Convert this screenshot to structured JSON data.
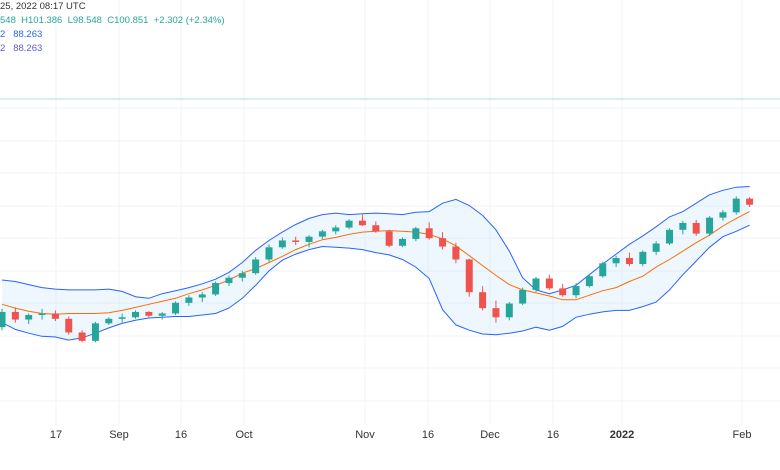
{
  "legend": {
    "header": "25, 2022 08:17 UTC",
    "ohlc_open": "548",
    "ohlc_high": "H101.386",
    "ohlc_low": "L98.548",
    "ohlc_close": "C100.851",
    "ohlc_change": "+2.302 (+2.34%)",
    "row2_prefix": "2",
    "row2_value": "88.263",
    "row3_prefix": "2",
    "row3_value": "88.263"
  },
  "chart_data": {
    "type": "candlestick",
    "indicator": "Bollinger Bands",
    "x_ticks": [
      "17",
      "Sep",
      "16",
      "Oct",
      "Nov",
      "16",
      "Dec",
      "16",
      "2022",
      "Feb"
    ],
    "y_range": [
      70,
      108
    ],
    "series": [
      {
        "name": "upper band",
        "values": [
          84.2,
          84.0,
          83.6,
          83.2,
          83.0,
          82.9,
          82.9,
          82.9,
          83.0,
          82.7,
          82.0,
          81.8,
          82.4,
          82.8,
          83.2,
          83.7,
          84.3,
          85.2,
          86.5,
          88.1,
          89.4,
          90.5,
          91.5,
          92.3,
          92.8,
          93.0,
          92.8,
          92.9,
          93.0,
          92.9,
          92.8,
          93.1,
          93.2,
          94.3,
          94.8,
          94.0,
          92.7,
          90.8,
          88.0,
          84.5,
          82.9,
          82.4,
          82.9,
          83.5,
          84.9,
          86.3,
          87.6,
          88.9,
          90.0,
          91.2,
          92.5,
          93.2,
          94.3,
          95.4,
          96.0,
          96.4,
          96.5
        ]
      },
      {
        "name": "basis",
        "values": [
          81.0,
          80.5,
          80.1,
          79.8,
          79.7,
          79.8,
          79.8,
          79.8,
          79.9,
          80.2,
          80.6,
          81.0,
          81.4,
          81.8,
          82.4,
          82.9,
          83.5,
          84.2,
          85.1,
          85.7,
          86.5,
          87.3,
          88.2,
          88.9,
          89.5,
          89.8,
          90.2,
          90.5,
          90.6,
          90.7,
          90.6,
          90.5,
          90.2,
          89.6,
          88.7,
          87.4,
          86.1,
          84.8,
          83.6,
          82.9,
          82.5,
          82.1,
          81.6,
          81.6,
          82.2,
          82.8,
          83.2,
          84.0,
          84.7,
          85.9,
          86.9,
          88.0,
          89.1,
          90.1,
          91.3,
          92.3,
          93.2
        ]
      },
      {
        "name": "lower band",
        "values": [
          78.6,
          77.7,
          77.2,
          76.8,
          76.7,
          76.3,
          76.6,
          77.2,
          77.9,
          78.5,
          78.9,
          79.2,
          79.3,
          79.4,
          79.4,
          79.6,
          79.8,
          80.5,
          81.8,
          83.5,
          85.4,
          86.8,
          87.6,
          88.2,
          88.6,
          88.5,
          88.4,
          88.2,
          87.8,
          87.5,
          86.9,
          85.9,
          84.4,
          80.3,
          78.3,
          77.6,
          77.1,
          77.0,
          77.2,
          77.5,
          78.0,
          77.6,
          78.1,
          79.3,
          79.7,
          80.0,
          80.2,
          80.2,
          80.7,
          81.3,
          82.9,
          84.9,
          86.7,
          88.5,
          89.9,
          90.6,
          91.4
        ]
      }
    ],
    "candles": [
      [
        78.0,
        80.4,
        77.6,
        80.0
      ],
      [
        80.0,
        80.6,
        78.6,
        79.0
      ],
      [
        79.0,
        79.8,
        78.4,
        79.6
      ],
      [
        79.6,
        80.4,
        79.0,
        79.8
      ],
      [
        79.8,
        80.2,
        78.8,
        79.1
      ],
      [
        79.1,
        79.4,
        77.0,
        77.3
      ],
      [
        77.3,
        77.6,
        76.0,
        76.2
      ],
      [
        76.2,
        78.7,
        76.0,
        78.5
      ],
      [
        78.5,
        79.3,
        78.3,
        79.1
      ],
      [
        79.1,
        79.8,
        78.6,
        79.3
      ],
      [
        79.3,
        80.2,
        79.1,
        80.0
      ],
      [
        80.0,
        80.1,
        79.3,
        79.5
      ],
      [
        79.5,
        80.0,
        79.0,
        79.8
      ],
      [
        79.8,
        81.4,
        79.6,
        81.2
      ],
      [
        81.2,
        82.2,
        80.8,
        81.9
      ],
      [
        81.9,
        82.6,
        81.3,
        82.3
      ],
      [
        82.3,
        84.0,
        82.1,
        83.8
      ],
      [
        83.8,
        84.8,
        83.4,
        84.5
      ],
      [
        84.5,
        85.4,
        84.0,
        85.1
      ],
      [
        85.1,
        87.2,
        84.9,
        86.9
      ],
      [
        86.9,
        88.9,
        86.6,
        88.5
      ],
      [
        88.5,
        89.8,
        88.3,
        89.4
      ],
      [
        89.4,
        89.9,
        88.8,
        89.2
      ],
      [
        89.2,
        90.1,
        88.5,
        89.9
      ],
      [
        89.9,
        90.8,
        89.6,
        90.6
      ],
      [
        90.6,
        91.4,
        90.2,
        91.1
      ],
      [
        91.1,
        92.2,
        90.9,
        92.0
      ],
      [
        92.0,
        92.8,
        91.3,
        91.4
      ],
      [
        91.4,
        91.9,
        90.4,
        90.6
      ],
      [
        90.6,
        90.8,
        88.5,
        88.7
      ],
      [
        88.7,
        89.8,
        88.5,
        89.6
      ],
      [
        89.6,
        91.2,
        89.3,
        91.0
      ],
      [
        91.0,
        91.8,
        89.5,
        89.7
      ],
      [
        89.7,
        90.5,
        88.2,
        88.6
      ],
      [
        88.6,
        89.1,
        86.4,
        86.9
      ],
      [
        86.9,
        87.0,
        82.0,
        82.6
      ],
      [
        82.6,
        83.4,
        80.2,
        80.5
      ],
      [
        80.5,
        81.5,
        78.6,
        79.3
      ],
      [
        79.3,
        81.3,
        78.9,
        81.1
      ],
      [
        81.1,
        83.2,
        80.9,
        82.9
      ],
      [
        82.9,
        84.6,
        82.6,
        84.4
      ],
      [
        84.4,
        84.9,
        82.9,
        83.1
      ],
      [
        83.1,
        83.7,
        82.0,
        82.2
      ],
      [
        82.2,
        83.8,
        81.8,
        83.4
      ],
      [
        83.4,
        85.0,
        83.2,
        84.7
      ],
      [
        84.7,
        86.6,
        84.5,
        86.4
      ],
      [
        86.4,
        87.4,
        85.9,
        87.1
      ],
      [
        87.1,
        87.8,
        86.0,
        86.3
      ],
      [
        86.3,
        88.1,
        86.0,
        87.9
      ],
      [
        87.9,
        89.3,
        87.5,
        89.0
      ],
      [
        89.0,
        91.0,
        88.8,
        90.8
      ],
      [
        90.8,
        92.0,
        90.2,
        91.7
      ],
      [
        91.7,
        92.1,
        90.0,
        90.3
      ],
      [
        90.3,
        92.6,
        90.0,
        92.4
      ],
      [
        92.4,
        93.4,
        92.0,
        93.1
      ],
      [
        93.1,
        95.2,
        92.8,
        94.9
      ],
      [
        94.9,
        95.1,
        93.8,
        94.1
      ]
    ]
  }
}
